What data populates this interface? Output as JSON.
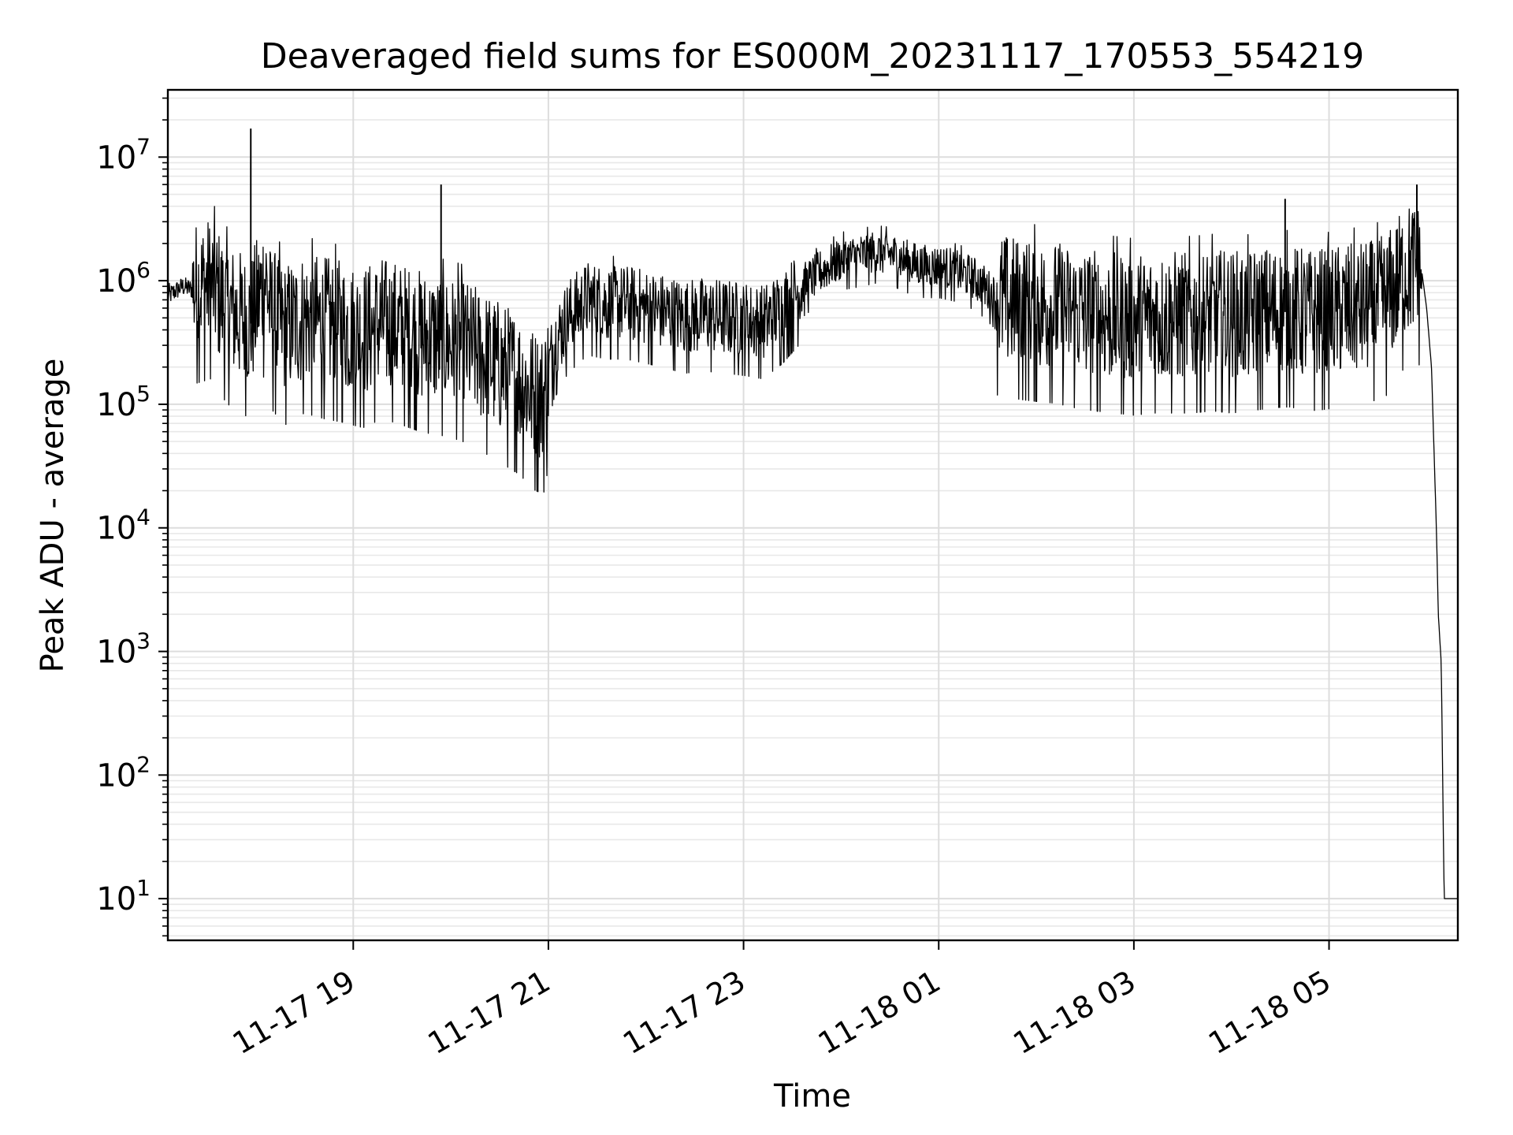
{
  "chart_data": {
    "type": "line",
    "title": "Deaveraged field sums for ES000M_20231117_170553_554219",
    "xlabel": "Time",
    "ylabel": "Peak ADU - average",
    "yscale": "log",
    "ylim": [
      4.6,
      35000000
    ],
    "xlim_hours": [
      17.1,
      30.32
    ],
    "xticks": [
      {
        "hour": 19,
        "label": "11-17 19"
      },
      {
        "hour": 21,
        "label": "11-17 21"
      },
      {
        "hour": 23,
        "label": "11-17 23"
      },
      {
        "hour": 25,
        "label": "11-18 01"
      },
      {
        "hour": 27,
        "label": "11-18 03"
      },
      {
        "hour": 29,
        "label": "11-18 05"
      }
    ],
    "yticks": [
      {
        "value": 10,
        "base": "10",
        "exp": "1"
      },
      {
        "value": 100,
        "base": "10",
        "exp": "2"
      },
      {
        "value": 1000,
        "base": "10",
        "exp": "3"
      },
      {
        "value": 10000,
        "base": "10",
        "exp": "4"
      },
      {
        "value": 100000,
        "base": "10",
        "exp": "5"
      },
      {
        "value": 1000000,
        "base": "10",
        "exp": "6"
      },
      {
        "value": 10000000,
        "base": "10",
        "exp": "7"
      }
    ],
    "grid": true,
    "line_color": "#000000",
    "series": [
      {
        "name": "field sums",
        "x_hours": [
          17.1,
          17.25,
          17.35,
          17.45,
          17.55,
          17.7,
          17.85,
          17.95,
          18.05,
          18.1,
          18.15,
          18.3,
          18.5,
          18.7,
          18.9,
          19.1,
          19.3,
          19.5,
          19.7,
          19.9,
          20.1,
          20.3,
          20.5,
          20.7,
          20.85,
          20.95,
          21.05,
          21.2,
          21.4,
          21.6,
          21.8,
          22.0,
          22.2,
          22.4,
          22.6,
          22.8,
          23.0,
          23.2,
          23.4,
          23.6,
          23.8,
          24.0,
          24.2,
          24.35,
          24.5,
          24.7,
          24.85,
          25.0,
          25.2,
          25.4,
          25.6,
          25.8,
          26.0,
          26.2,
          26.4,
          26.6,
          26.8,
          27.0,
          27.2,
          27.4,
          27.6,
          27.8,
          28.0,
          28.2,
          28.4,
          28.6,
          28.8,
          29.0,
          29.2,
          29.4,
          29.6,
          29.75,
          29.85,
          29.95,
          30.0,
          30.05,
          30.1,
          30.12,
          30.15,
          30.18,
          30.2,
          30.32
        ],
        "values": [
          750000,
          900000,
          850000,
          900000,
          950000,
          600000,
          500000,
          450000,
          800000,
          1100000,
          550000,
          400000,
          500000,
          450000,
          420000,
          380000,
          450000,
          400000,
          350000,
          330000,
          300000,
          250000,
          200000,
          160000,
          120000,
          110000,
          300000,
          500000,
          700000,
          650000,
          650000,
          600000,
          550000,
          500000,
          520000,
          500000,
          480000,
          450000,
          600000,
          900000,
          1200000,
          1500000,
          1600000,
          1700000,
          1650000,
          1400000,
          1300000,
          1300000,
          1200000,
          1000000,
          700000,
          650000,
          620000,
          600000,
          550000,
          520000,
          500000,
          480000,
          500000,
          500000,
          500000,
          520000,
          500000,
          520000,
          550000,
          560000,
          520000,
          540000,
          580000,
          600000,
          700000,
          1100000,
          1300000,
          1200000,
          600000,
          200000,
          10000,
          2000,
          800,
          10,
          10,
          10
        ]
      }
    ],
    "annotations_peaks": [
      {
        "x_hour": 17.95,
        "value": 17000000
      },
      {
        "x_hour": 19.9,
        "value": 6000000
      },
      {
        "x_hour": 29.9,
        "value": 6000000
      },
      {
        "x_hour": 28.55,
        "value": 4600000
      }
    ]
  }
}
